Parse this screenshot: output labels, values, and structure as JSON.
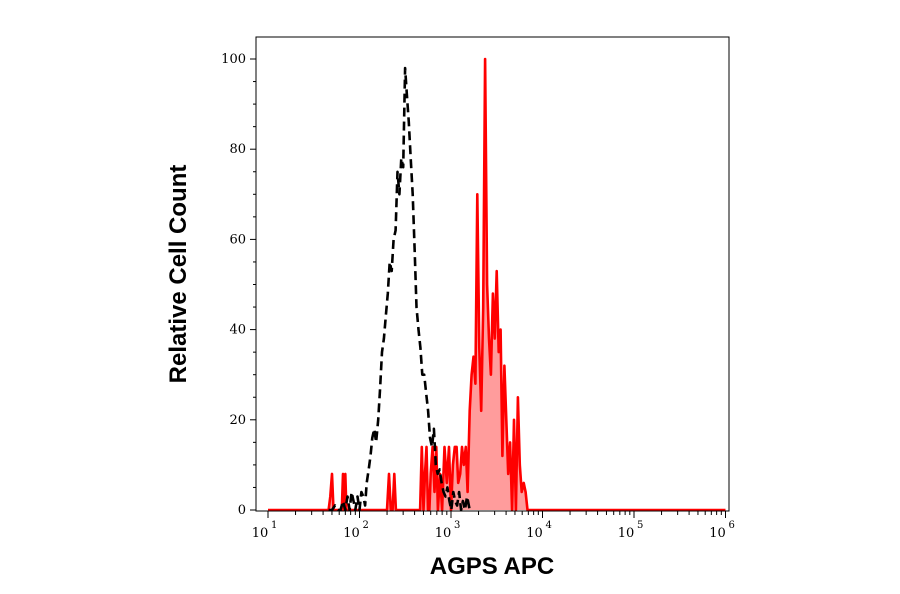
{
  "chart_data": {
    "type": "area",
    "xlabel": "AGPS APC",
    "ylabel": "Relative Cell Count",
    "x_scale": "log",
    "xlim": [
      10,
      1000000
    ],
    "ylim": [
      0,
      105
    ],
    "grid": false,
    "legend": "none",
    "x_ticks": [
      {
        "base": "10",
        "exp": "1",
        "value": 10
      },
      {
        "base": "10",
        "exp": "2",
        "value": 100
      },
      {
        "base": "10",
        "exp": "3",
        "value": 1000
      },
      {
        "base": "10",
        "exp": "4",
        "value": 10000
      },
      {
        "base": "10",
        "exp": "5",
        "value": 100000
      },
      {
        "base": "10",
        "exp": "6",
        "value": 1000000
      }
    ],
    "y_ticks": [
      {
        "label": "0",
        "value": 0
      },
      {
        "label": "20",
        "value": 20
      },
      {
        "label": "40",
        "value": 40
      },
      {
        "label": "60",
        "value": 60
      },
      {
        "label": "80",
        "value": 80
      },
      {
        "label": "100",
        "value": 100
      }
    ],
    "series": [
      {
        "style": "dashed",
        "color": "#000000",
        "filled": false,
        "x": [
          46,
          50,
          54,
          58,
          62,
          66,
          70,
          74,
          78,
          82,
          86,
          90,
          95,
          100,
          105,
          110,
          115,
          120,
          126,
          132,
          138,
          145,
          152,
          160,
          168,
          176,
          185,
          194,
          204,
          214,
          225,
          236,
          248,
          260,
          273,
          286,
          300,
          315,
          330,
          346,
          363,
          381,
          400,
          420,
          441,
          463,
          486,
          510,
          535,
          562,
          590,
          620,
          650,
          682,
          716,
          752,
          790,
          830,
          870,
          914,
          960,
          1008,
          1060,
          1110,
          1165,
          1225,
          1290,
          1350,
          1420,
          1500,
          1600
        ],
        "values": [
          0,
          0,
          1,
          0,
          0,
          2,
          0,
          3,
          0,
          4,
          2,
          0,
          3,
          0,
          4,
          3,
          1,
          6,
          9,
          12,
          16,
          18,
          15,
          20,
          27,
          35,
          38,
          43,
          48,
          55,
          53,
          60,
          62,
          75,
          70,
          78,
          76,
          98,
          92,
          86,
          78,
          70,
          58,
          45,
          40,
          36,
          30,
          30,
          26,
          22,
          16,
          14,
          18,
          10,
          8,
          9,
          6,
          4,
          3,
          5,
          2,
          0,
          4,
          2,
          1,
          4,
          0,
          2,
          0,
          3,
          0
        ]
      },
      {
        "style": "solid",
        "color": "#ff0000",
        "fill": "#ff9c9c",
        "filled": true,
        "x": [
          10,
          46,
          48,
          50,
          52,
          54,
          56,
          58,
          60,
          62,
          64,
          66,
          68,
          70,
          72,
          80,
          90,
          100,
          110,
          120,
          130,
          140,
          150,
          200,
          210,
          220,
          230,
          240,
          250,
          260,
          300,
          360,
          400,
          440,
          460,
          480,
          500,
          520,
          540,
          560,
          580,
          600,
          630,
          660,
          690,
          720,
          760,
          800,
          850,
          900,
          950,
          1000,
          1050,
          1100,
          1150,
          1200,
          1260,
          1320,
          1380,
          1450,
          1520,
          1600,
          1680,
          1760,
          1850,
          1940,
          2040,
          2140,
          2250,
          2360,
          2480,
          2600,
          2730,
          2870,
          3010,
          3160,
          3320,
          3480,
          3650,
          3830,
          4020,
          4220,
          4430,
          4650,
          4880,
          5120,
          5380,
          5650,
          5930,
          6230,
          6540,
          6860,
          7200,
          7560,
          7940,
          8340,
          8760,
          9200,
          9700,
          10500,
          15000,
          100000,
          1000000
        ],
        "values": [
          0,
          0,
          3,
          8,
          0,
          0,
          0,
          0,
          0,
          0,
          0,
          8,
          0,
          8,
          0,
          0,
          0,
          0,
          0,
          0,
          0,
          0,
          0,
          0,
          8,
          0,
          0,
          8,
          0,
          0,
          0,
          0,
          0,
          0,
          0,
          14,
          0,
          8,
          14,
          0,
          0,
          8,
          14,
          4,
          14,
          0,
          8,
          0,
          14,
          6,
          14,
          0,
          10,
          14,
          14,
          6,
          8,
          14,
          10,
          14,
          4,
          22,
          30,
          34,
          28,
          70,
          36,
          22,
          45,
          100,
          50,
          38,
          30,
          48,
          38,
          53,
          35,
          40,
          12,
          32,
          20,
          8,
          15,
          0,
          20,
          0,
          25,
          10,
          4,
          6,
          4,
          0,
          0,
          0,
          0,
          0,
          0,
          0,
          0,
          0,
          0,
          0,
          0
        ]
      }
    ]
  }
}
